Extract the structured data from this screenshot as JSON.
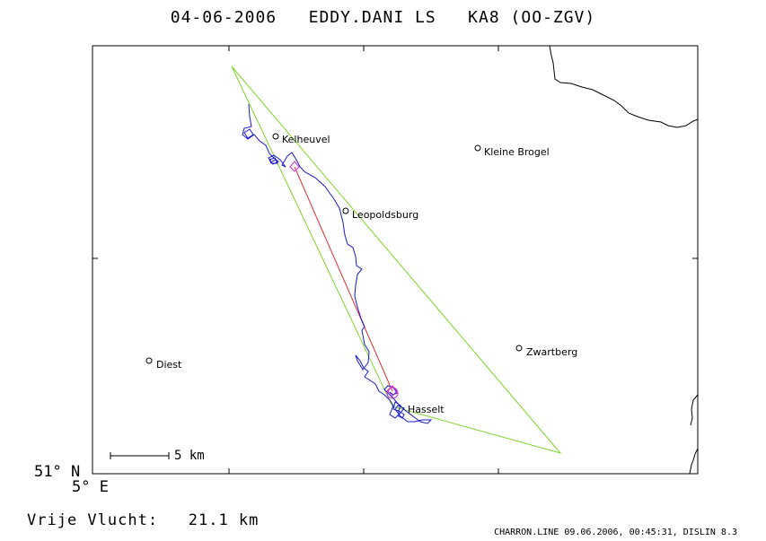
{
  "header": {
    "title": "04-06-2006   EDDY.DANI LS   KA8 (OO-ZGV)"
  },
  "axes": {
    "lat_label": "51° N",
    "lon_label": "5° E"
  },
  "scale": {
    "label": "5 km"
  },
  "summary": {
    "distance_label": "Vrije Vlucht:   21.1 km"
  },
  "footer": {
    "text": "CHARRON.LINE 09.06.2006, 00:45:31, DISLIN 8.3"
  },
  "places": [
    {
      "name": "Kelheuvel"
    },
    {
      "name": "Kleine Brogel"
    },
    {
      "name": "Leopoldsburg"
    },
    {
      "name": "Zwartberg"
    },
    {
      "name": "Diest"
    },
    {
      "name": "Hasselt"
    }
  ],
  "colors": {
    "frame": "#000000",
    "triangle": "#7fd52a",
    "route": "#e03030",
    "track": "#1a1ad0",
    "turnpoint": "#d030d0"
  }
}
